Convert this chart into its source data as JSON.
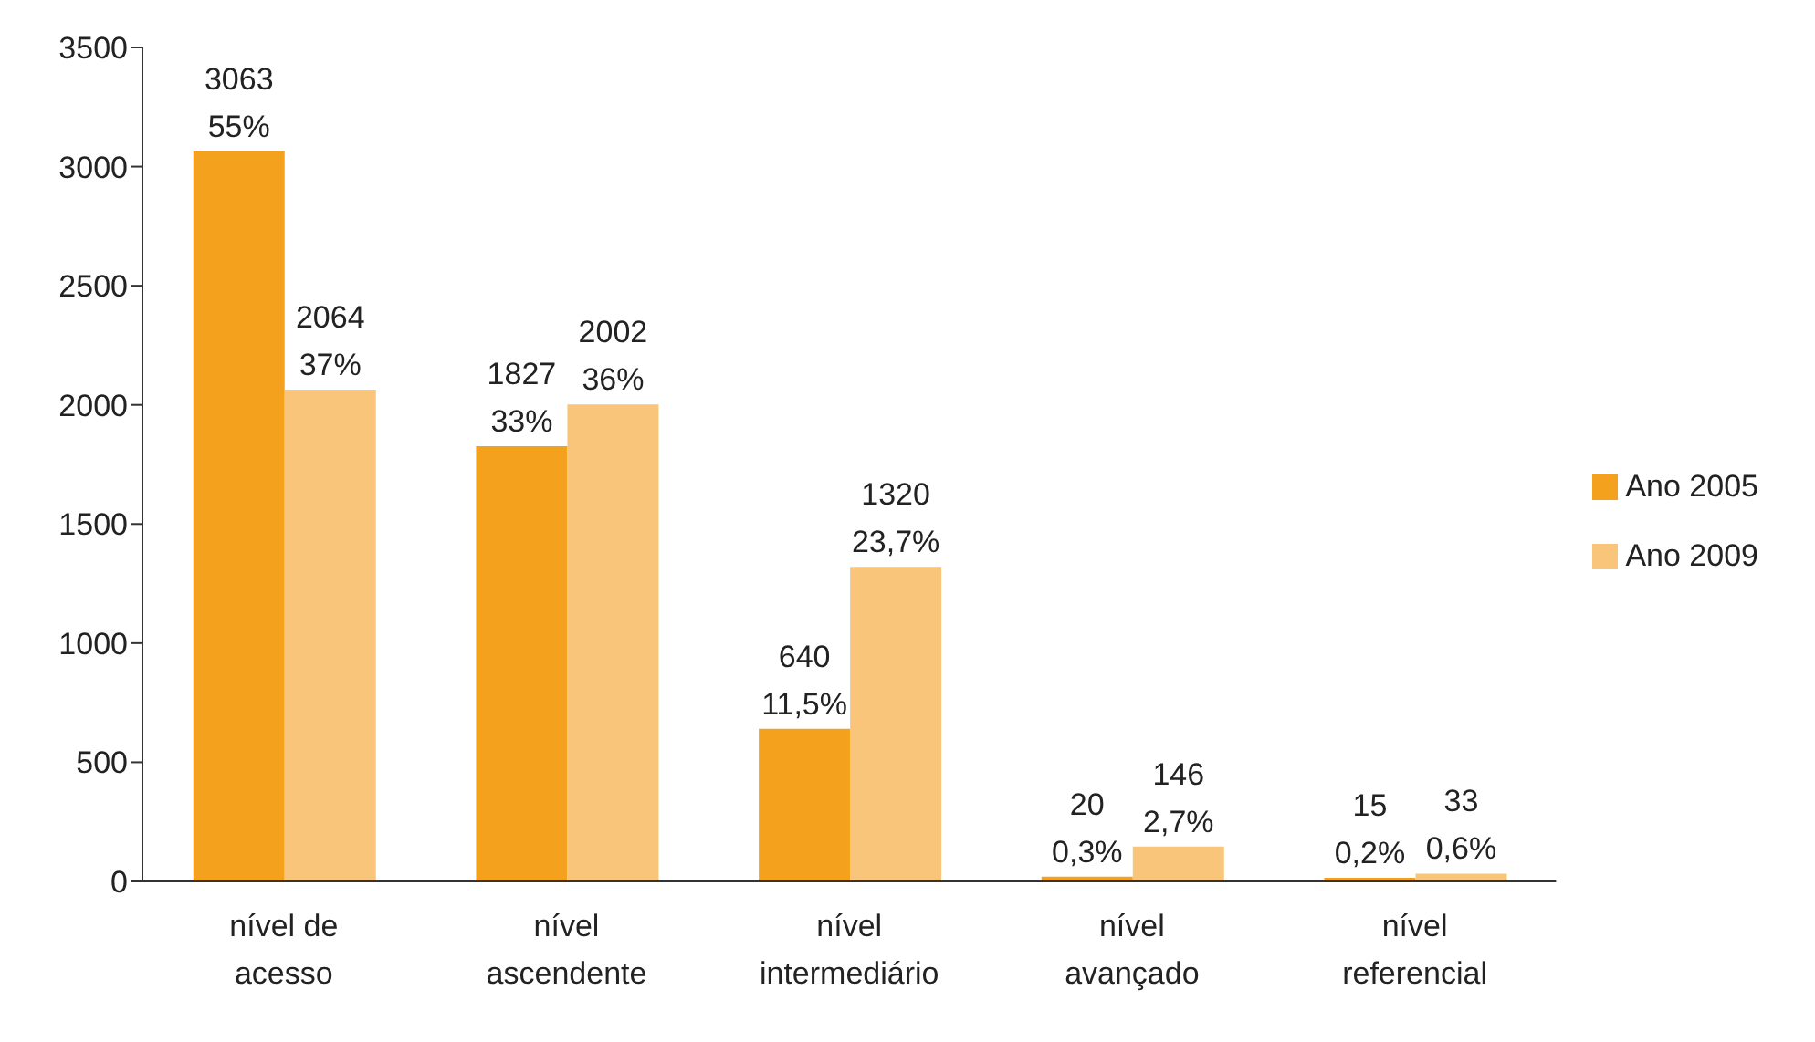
{
  "chart_data": {
    "type": "bar",
    "categories": [
      "nível de acesso",
      "nível ascendente",
      "nível intermediário",
      "nível avançado",
      "nível referencial"
    ],
    "series": [
      {
        "name": "Ano 2005",
        "color": "#f4a21e",
        "values": [
          3063,
          1827,
          640,
          20,
          15
        ],
        "value_labels": [
          "3063\n55%",
          "1827\n33%",
          "640\n11,5%",
          "20\n0,3%",
          "15\n0,2%"
        ]
      },
      {
        "name": "Ano 2009",
        "color": "#f9c57b",
        "values": [
          2064,
          2002,
          1320,
          146,
          33
        ],
        "value_labels": [
          "2064\n37%",
          "2002\n36%",
          "1320\n23,7%",
          "146\n2,7%",
          "33\n0,6%"
        ]
      }
    ],
    "ylim": [
      0,
      3500
    ],
    "yticks": [
      0,
      500,
      1000,
      1500,
      2000,
      2500,
      3000,
      3500
    ],
    "grid": false,
    "legend": "right"
  }
}
